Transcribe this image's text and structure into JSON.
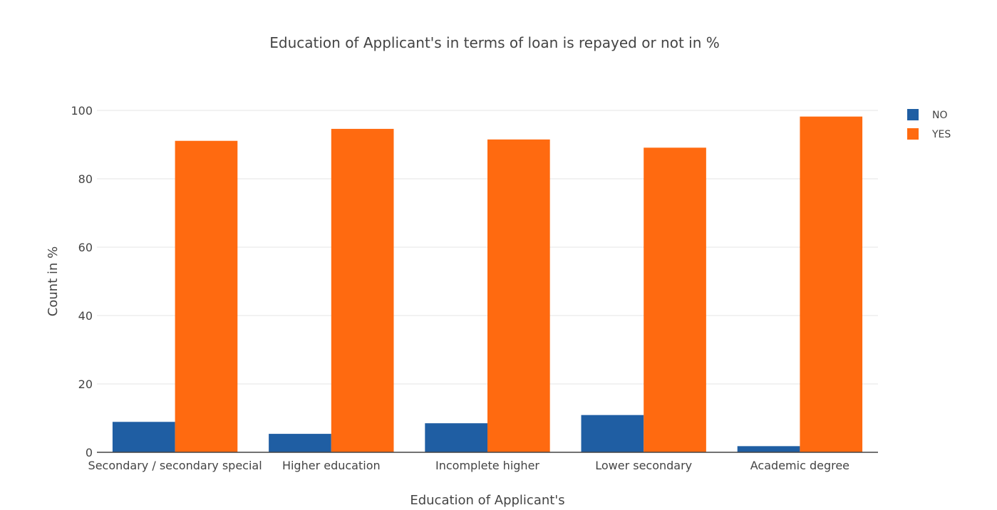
{
  "chart_data": {
    "type": "bar",
    "title": "Education of Applicant's in terms of loan is repayed or not in %",
    "xlabel": "Education of Applicant's",
    "ylabel": "Count in %",
    "categories": [
      "Secondary / secondary special",
      "Higher education",
      "Incomplete higher",
      "Lower secondary",
      "Academic degree"
    ],
    "series": [
      {
        "name": "NO",
        "color": "#1f5ea3",
        "values": [
          8.9,
          5.4,
          8.5,
          10.9,
          1.8
        ]
      },
      {
        "name": "YES",
        "color": "#ff6a10",
        "values": [
          91.1,
          94.6,
          91.5,
          89.1,
          98.2
        ]
      }
    ],
    "ylim": [
      0,
      100
    ],
    "yticks": [
      0,
      20,
      40,
      60,
      80,
      100
    ],
    "grid": true,
    "legend": "top-right"
  }
}
